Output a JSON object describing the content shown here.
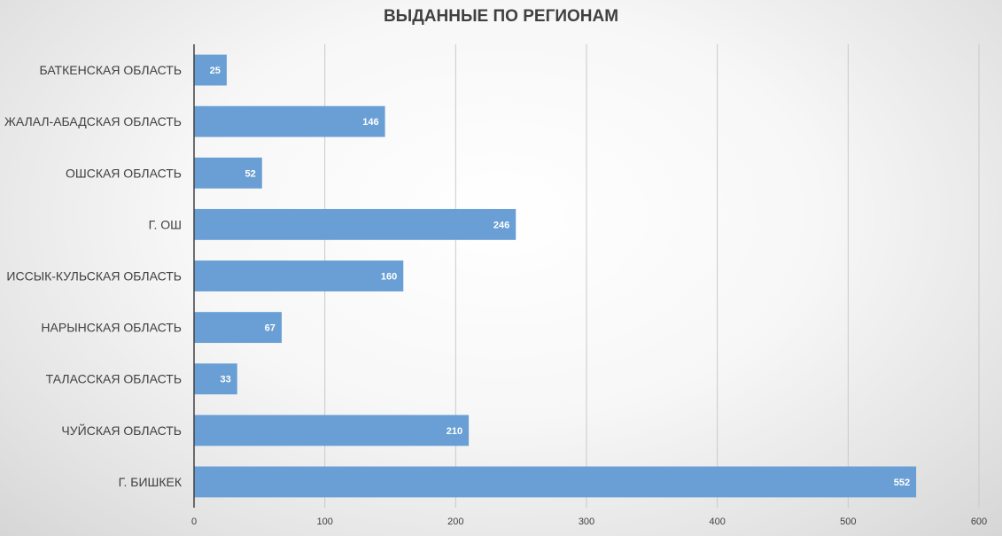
{
  "chart_data": {
    "type": "bar",
    "orientation": "horizontal",
    "title": "ВЫДАННЫЕ ПО РЕГИОНАМ",
    "categories": [
      "БАТКЕНСКАЯ ОБЛАСТЬ",
      "ЖАЛАЛ-АБАДСКАЯ ОБЛАСТЬ",
      "ОШСКАЯ ОБЛАСТЬ",
      "Г. ОШ",
      "ИССЫК-КУЛЬСКАЯ ОБЛАСТЬ",
      "НАРЫНСКАЯ ОБЛАСТЬ",
      "ТАЛАССКАЯ ОБЛАСТЬ",
      "ЧУЙСКАЯ ОБЛАСТЬ",
      "Г. БИШКЕК"
    ],
    "values": [
      25,
      146,
      52,
      246,
      160,
      67,
      33,
      210,
      552
    ],
    "xlim": [
      0,
      600
    ],
    "xticks": [
      0,
      100,
      200,
      300,
      400,
      500,
      600
    ],
    "grid": "vertical",
    "legend": "none",
    "bar_color": "#6a9fd5",
    "data_labels": "inside-end"
  }
}
